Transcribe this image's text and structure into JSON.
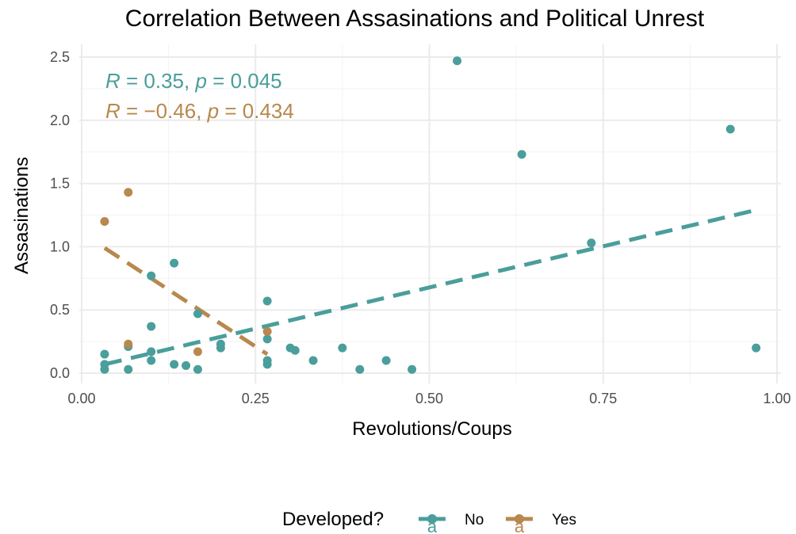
{
  "chart_data": {
    "type": "scatter",
    "title": "Correlation Between Assasinations and Political Unrest",
    "xlabel": "Revolutions/Coups",
    "ylabel": "Assasinations",
    "xlim": [
      0.0,
      1.0
    ],
    "ylim": [
      0.0,
      2.5
    ],
    "x_ticks": [
      "0.00",
      "0.25",
      "0.50",
      "0.75",
      "1.00"
    ],
    "y_ticks": [
      "0.0",
      "0.5",
      "1.0",
      "1.5",
      "2.0",
      "2.5"
    ],
    "grid": true,
    "legend": {
      "title": "Developed?",
      "placement": "bottom",
      "glyph": "a",
      "entries": [
        "No",
        "Yes"
      ]
    },
    "series": [
      {
        "name": "No",
        "color": "#4A9E9B",
        "points": [
          {
            "x": 0.033,
            "y": 0.15
          },
          {
            "x": 0.033,
            "y": 0.07
          },
          {
            "x": 0.033,
            "y": 0.03
          },
          {
            "x": 0.067,
            "y": 0.21
          },
          {
            "x": 0.067,
            "y": 0.03
          },
          {
            "x": 0.1,
            "y": 0.77
          },
          {
            "x": 0.1,
            "y": 0.37
          },
          {
            "x": 0.1,
            "y": 0.17
          },
          {
            "x": 0.1,
            "y": 0.1
          },
          {
            "x": 0.133,
            "y": 0.87
          },
          {
            "x": 0.133,
            "y": 0.07
          },
          {
            "x": 0.15,
            "y": 0.06
          },
          {
            "x": 0.167,
            "y": 0.47
          },
          {
            "x": 0.167,
            "y": 0.03
          },
          {
            "x": 0.2,
            "y": 0.23
          },
          {
            "x": 0.2,
            "y": 0.2
          },
          {
            "x": 0.267,
            "y": 0.57
          },
          {
            "x": 0.267,
            "y": 0.27
          },
          {
            "x": 0.267,
            "y": 0.1
          },
          {
            "x": 0.267,
            "y": 0.07
          },
          {
            "x": 0.3,
            "y": 0.2
          },
          {
            "x": 0.307,
            "y": 0.18
          },
          {
            "x": 0.333,
            "y": 0.1
          },
          {
            "x": 0.375,
            "y": 0.2
          },
          {
            "x": 0.4,
            "y": 0.03
          },
          {
            "x": 0.438,
            "y": 0.1
          },
          {
            "x": 0.475,
            "y": 0.03
          },
          {
            "x": 0.54,
            "y": 2.47
          },
          {
            "x": 0.633,
            "y": 1.73
          },
          {
            "x": 0.733,
            "y": 1.03
          },
          {
            "x": 0.933,
            "y": 1.93
          },
          {
            "x": 0.97,
            "y": 0.2
          }
        ],
        "fit": {
          "x": [
            0.033,
            0.97
          ],
          "y": [
            0.07,
            1.29
          ]
        },
        "stat": {
          "r": "0.35",
          "p": "0.045"
        }
      },
      {
        "name": "Yes",
        "color": "#B8884E",
        "points": [
          {
            "x": 0.033,
            "y": 1.2
          },
          {
            "x": 0.067,
            "y": 1.43
          },
          {
            "x": 0.067,
            "y": 0.23
          },
          {
            "x": 0.167,
            "y": 0.17
          },
          {
            "x": 0.267,
            "y": 0.33
          }
        ],
        "fit": {
          "x": [
            0.033,
            0.267
          ],
          "y": [
            0.99,
            0.15
          ]
        },
        "stat": {
          "r": "−0.46",
          "p": "0.434"
        }
      }
    ]
  }
}
